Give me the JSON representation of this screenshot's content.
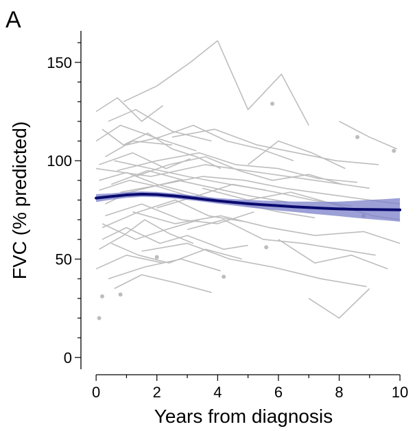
{
  "chart_data": {
    "type": "line",
    "panel_label": "A",
    "xlabel": "Years from diagnosis",
    "ylabel": "FVC (% predicted)",
    "xlim": [
      -0.5,
      10.2
    ],
    "ylim": [
      -6,
      166
    ],
    "x_ticks": [
      0,
      2,
      4,
      6,
      8,
      10
    ],
    "y_ticks": [
      0,
      50,
      100,
      150
    ],
    "grid": false,
    "legend": "none",
    "colors": {
      "trajectories": "#bdbdbd",
      "mean_line": "#0a0a6e",
      "ci_band": "#7b80c9"
    },
    "mean_curve": {
      "x": [
        0,
        0.5,
        1,
        1.5,
        2,
        2.5,
        3,
        3.5,
        4,
        4.5,
        5,
        5.5,
        6,
        6.5,
        7,
        7.5,
        8,
        8.5,
        9,
        9.5,
        10
      ],
      "y": [
        81,
        81.8,
        82.6,
        83,
        82.8,
        82.2,
        81.4,
        80.5,
        79.6,
        78.9,
        78.2,
        77.6,
        77.1,
        76.6,
        76.2,
        75.8,
        75.5,
        75.3,
        75.2,
        75.1,
        75
      ],
      "lower": [
        79,
        80.2,
        81.1,
        81.6,
        81.5,
        80.9,
        80.1,
        79.2,
        78.2,
        77.3,
        76.3,
        75.5,
        74.7,
        74,
        73.2,
        72.5,
        71.8,
        71,
        70.3,
        69.7,
        69
      ],
      "upper": [
        83,
        83.4,
        84.1,
        84.4,
        84.1,
        83.5,
        82.7,
        81.8,
        81,
        80.5,
        80.1,
        79.7,
        79.5,
        79.2,
        79.2,
        79.1,
        79.2,
        79.6,
        80.1,
        80.5,
        81
      ]
    },
    "trajectories": [
      {
        "x": [
          0.1,
          1.2,
          2.3,
          3.1
        ],
        "y": [
          98,
          104,
          96,
          101
        ]
      },
      {
        "x": [
          0.3,
          1.5,
          2.8,
          4.0,
          5.2
        ],
        "y": [
          72,
          78,
          70,
          68,
          74
        ]
      },
      {
        "x": [
          0.0,
          0.8,
          1.9,
          3.3
        ],
        "y": [
          110,
          118,
          112,
          105
        ]
      },
      {
        "x": [
          0.2,
          1.0,
          2.1,
          3.0,
          4.2,
          5.0
        ],
        "y": [
          60,
          66,
          58,
          62,
          55,
          57
        ]
      },
      {
        "x": [
          0.5,
          1.7,
          2.9
        ],
        "y": [
          88,
          95,
          90
        ]
      },
      {
        "x": [
          0.1,
          1.1,
          2.0,
          3.5,
          4.8,
          6.0,
          7.2
        ],
        "y": [
          85,
          90,
          87,
          80,
          78,
          74,
          71
        ]
      },
      {
        "x": [
          0.4,
          1.3,
          2.5,
          3.8
        ],
        "y": [
          120,
          126,
          115,
          110
        ]
      },
      {
        "x": [
          0.0,
          1.0,
          2.2
        ],
        "y": [
          45,
          52,
          48
        ]
      },
      {
        "x": [
          0.6,
          1.8,
          3.0,
          4.4,
          5.6
        ],
        "y": [
          100,
          96,
          92,
          88,
          85
        ]
      },
      {
        "x": [
          0.2,
          1.4,
          2.6,
          3.7,
          4.9
        ],
        "y": [
          66,
          74,
          80,
          72,
          69
        ]
      },
      {
        "x": [
          0.9,
          2.0,
          3.1,
          4.0
        ],
        "y": [
          130,
          138,
          150,
          161
        ]
      },
      {
        "x": [
          4.0,
          5.0,
          6.1,
          7.0
        ],
        "y": [
          161,
          126,
          144,
          118
        ]
      },
      {
        "x": [
          1.3,
          2.4,
          3.6,
          4.7,
          5.8,
          7.0,
          8.1
        ],
        "y": [
          92,
          98,
          102,
          95,
          90,
          93,
          88
        ]
      },
      {
        "x": [
          0.1,
          0.9,
          1.6,
          2.4,
          3.2
        ],
        "y": [
          55,
          62,
          70,
          63,
          58
        ]
      },
      {
        "x": [
          0.3,
          1.1,
          2.7,
          3.9,
          5.1,
          6.3
        ],
        "y": [
          78,
          84,
          90,
          86,
          82,
          79
        ]
      },
      {
        "x": [
          0.0,
          0.7,
          1.5,
          2.2
        ],
        "y": [
          125,
          132,
          120,
          128
        ]
      },
      {
        "x": [
          0.4,
          1.6,
          2.8,
          4.1
        ],
        "y": [
          40,
          46,
          50,
          44
        ]
      },
      {
        "x": [
          0.7,
          2.0,
          3.4,
          4.6,
          6.0,
          7.3,
          8.6
        ],
        "y": [
          95,
          100,
          104,
          98,
          96,
          91,
          89
        ]
      },
      {
        "x": [
          0.2,
          1.3,
          2.3,
          3.4
        ],
        "y": [
          68,
          60,
          65,
          70
        ]
      },
      {
        "x": [
          1.0,
          2.1,
          3.2,
          4.3,
          5.4,
          6.5
        ],
        "y": [
          108,
          112,
          118,
          110,
          106,
          100
        ]
      },
      {
        "x": [
          0.5,
          1.4,
          2.4,
          3.6,
          4.8
        ],
        "y": [
          58,
          52,
          48,
          55,
          50
        ]
      },
      {
        "x": [
          0.1,
          1.0,
          2.0,
          3.0,
          4.0
        ],
        "y": [
          90,
          94,
          88,
          84,
          80
        ]
      },
      {
        "x": [
          2.0,
          3.3,
          4.5,
          5.9,
          7.1,
          8.4
        ],
        "y": [
          76,
          82,
          88,
          84,
          80,
          77
        ]
      },
      {
        "x": [
          0.3,
          1.2,
          2.5
        ],
        "y": [
          102,
          110,
          108
        ]
      },
      {
        "x": [
          3.0,
          4.2,
          5.5,
          6.8,
          8.0,
          9.2
        ],
        "y": [
          65,
          70,
          60,
          58,
          55,
          52
        ]
      },
      {
        "x": [
          0.8,
          2.2,
          3.5,
          4.9,
          6.2,
          7.6,
          9.0,
          10.0
        ],
        "y": [
          84,
          88,
          92,
          90,
          86,
          83,
          80,
          78
        ]
      },
      {
        "x": [
          5.0,
          6.0,
          7.1,
          8.2
        ],
        "y": [
          98,
          110,
          104,
          96
        ]
      },
      {
        "x": [
          6.0,
          7.2,
          8.4,
          9.6
        ],
        "y": [
          60,
          48,
          52,
          45
        ]
      },
      {
        "x": [
          0.6,
          1.5,
          2.6,
          3.8
        ],
        "y": [
          35,
          42,
          38,
          33
        ]
      },
      {
        "x": [
          7.0,
          8.0,
          9.0
        ],
        "y": [
          30,
          20,
          35
        ]
      },
      {
        "x": [
          8.0,
          9.0,
          9.9
        ],
        "y": [
          120,
          112,
          106
        ]
      },
      {
        "x": [
          2.5,
          3.9,
          5.3,
          6.6,
          7.9,
          9.3
        ],
        "y": [
          112,
          116,
          108,
          104,
          100,
          98
        ]
      },
      {
        "x": [
          1.2,
          2.6,
          4.1,
          5.7,
          7.2,
          8.8,
          10.0
        ],
        "y": [
          74,
          68,
          72,
          66,
          62,
          64,
          58
        ]
      },
      {
        "x": [
          0.0,
          1.8,
          3.6,
          5.4,
          7.2,
          9.0
        ],
        "y": [
          96,
          92,
          98,
          94,
          90,
          86
        ]
      },
      {
        "x": [
          1.5,
          3.0,
          4.4,
          5.8,
          7.4,
          8.9
        ],
        "y": [
          54,
          58,
          50,
          46,
          40,
          36
        ]
      },
      {
        "x": [
          0.2,
          0.9,
          1.7,
          2.5,
          3.3,
          4.1
        ],
        "y": [
          116,
          108,
          114,
          106,
          102,
          96
        ]
      },
      {
        "x": [
          3.5,
          5.0,
          6.4,
          7.8,
          9.1,
          10.0
        ],
        "y": [
          86,
          80,
          84,
          78,
          72,
          70
        ]
      }
    ],
    "points": [
      {
        "x": 0.1,
        "y": 20
      },
      {
        "x": 0.2,
        "y": 31
      },
      {
        "x": 0.8,
        "y": 32
      },
      {
        "x": 4.2,
        "y": 41
      },
      {
        "x": 5.8,
        "y": 129
      },
      {
        "x": 8.6,
        "y": 112
      },
      {
        "x": 9.8,
        "y": 105
      },
      {
        "x": 8.8,
        "y": 72
      },
      {
        "x": 5.6,
        "y": 56
      },
      {
        "x": 2.0,
        "y": 51
      }
    ]
  }
}
